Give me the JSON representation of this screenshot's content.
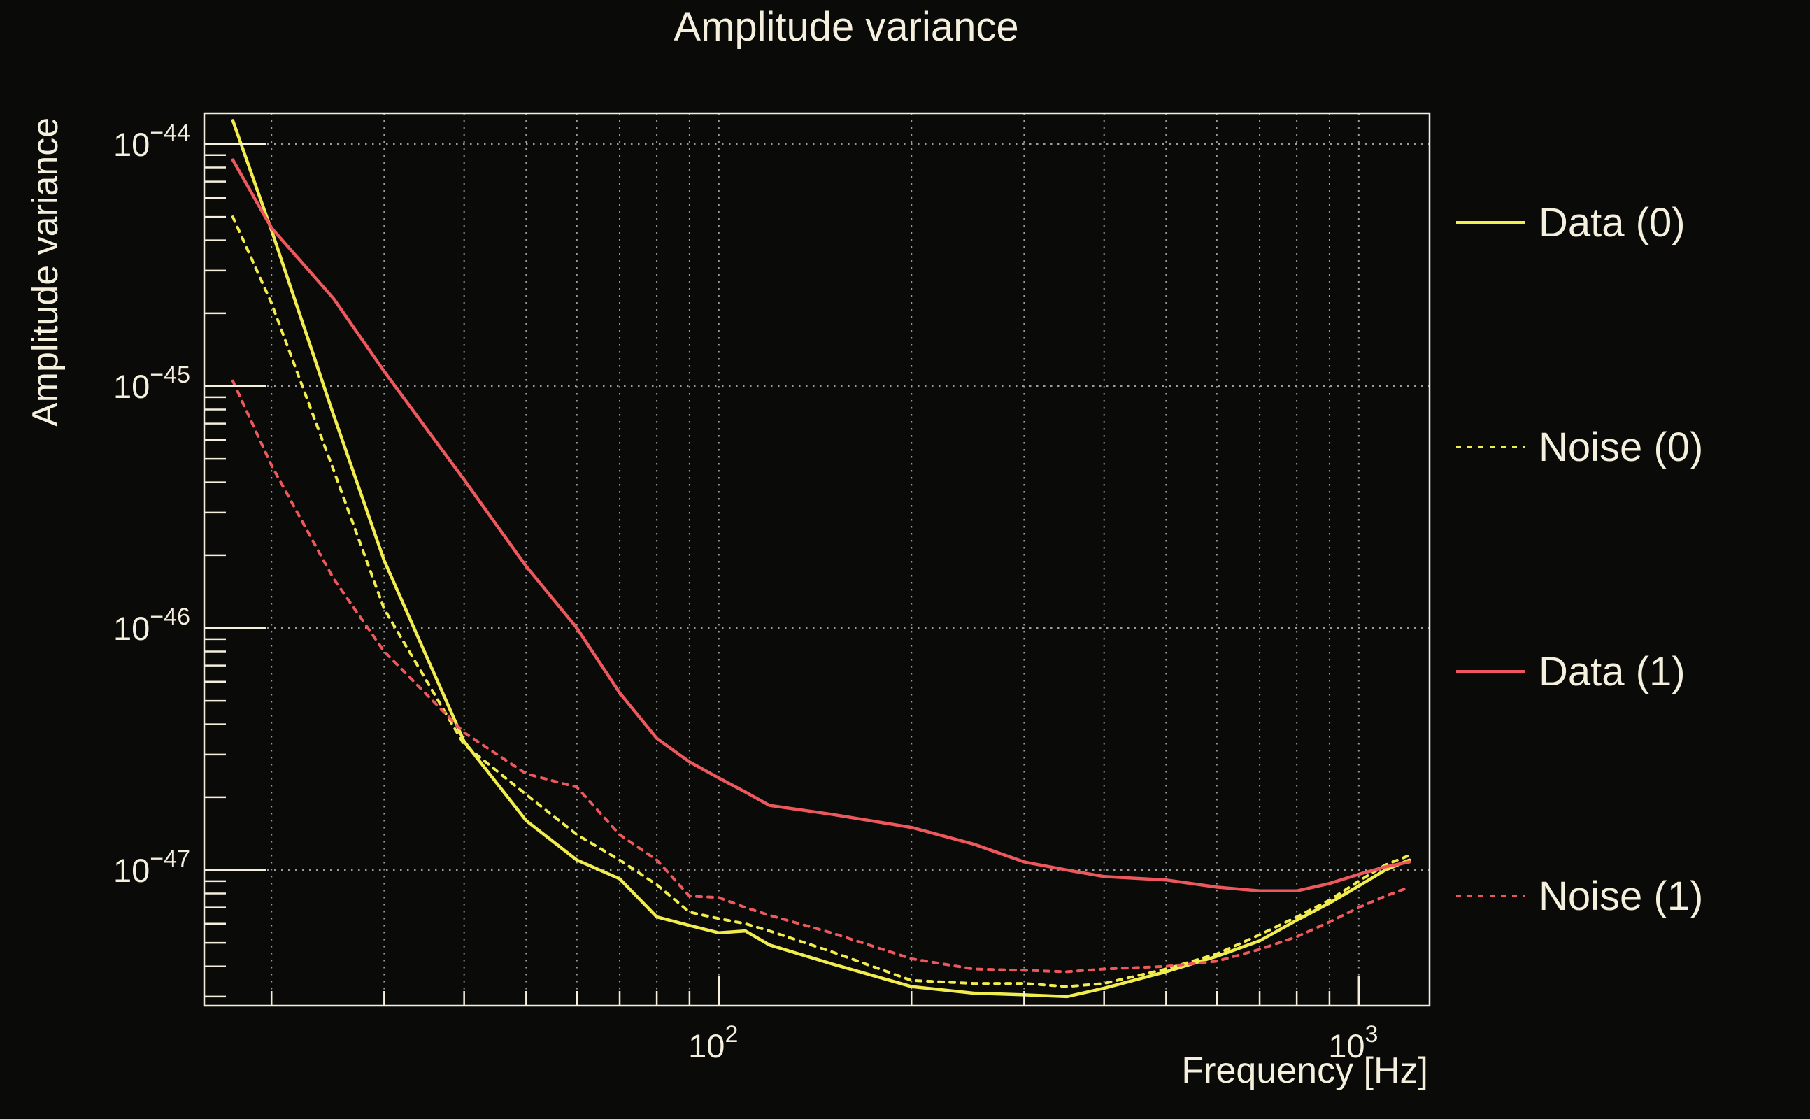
{
  "chart_data": {
    "type": "line",
    "title": "Amplitude variance",
    "xlabel": "Frequency [Hz]",
    "ylabel": "Amplitude variance",
    "xscale": "log",
    "yscale": "log",
    "xlim": [
      15.7,
      1290
    ],
    "ylim": [
      2.75e-48,
      1.34e-44
    ],
    "grid": "dotted gray lines at every log step on x (20-1000), decades only on y",
    "legend_position": "right-outside",
    "x_ticks": [
      {
        "base": "10",
        "exp": "2",
        "value": 100
      },
      {
        "base": "10",
        "exp": "3",
        "value": 1000
      }
    ],
    "y_ticks": [
      {
        "base": "10",
        "exp": "−44",
        "value": 1e-44
      },
      {
        "base": "10",
        "exp": "−45",
        "value": 1e-45
      },
      {
        "base": "10",
        "exp": "−46",
        "value": 1e-46
      },
      {
        "base": "10",
        "exp": "−47",
        "value": 1e-47
      }
    ],
    "x": [
      17.4,
      20,
      25,
      30,
      40,
      50,
      60,
      70,
      80,
      90,
      100,
      110,
      120,
      150,
      200,
      250,
      300,
      350,
      400,
      500,
      600,
      700,
      800,
      900,
      1000,
      1100,
      1200
    ],
    "series": [
      {
        "name": "Data (0)",
        "color": "#f1ed4f",
        "style": "solid",
        "values": [
          1.25e-44,
          4.4e-45,
          7.6e-46,
          1.9e-46,
          3.4e-47,
          1.6e-47,
          1.1e-47,
          9.2e-48,
          6.4e-48,
          5.9e-48,
          5.5e-48,
          5.6e-48,
          4.9e-48,
          4.1e-48,
          3.3e-48,
          3.1e-48,
          3.05e-48,
          3e-48,
          3.25e-48,
          3.8e-48,
          4.4e-48,
          5.1e-48,
          6.2e-48,
          7.3e-48,
          8.6e-48,
          1e-47,
          1.1e-47
        ]
      },
      {
        "name": "Noise (0)",
        "color": "#f1ed4f",
        "style": "dotted",
        "values": [
          5e-45,
          2.2e-45,
          4.5e-46,
          1.2e-46,
          3.3e-47,
          2.05e-47,
          1.4e-47,
          1.1e-47,
          8.7e-48,
          6.7e-48,
          6.3e-48,
          6e-48,
          5.6e-48,
          4.6e-48,
          3.5e-48,
          3.4e-48,
          3.4e-48,
          3.3e-48,
          3.4e-48,
          3.9e-48,
          4.5e-48,
          5.4e-48,
          6.4e-48,
          7.5e-48,
          9e-48,
          1.05e-47,
          1.15e-47
        ]
      },
      {
        "name": "Data (1)",
        "color": "#ed585c",
        "style": "solid",
        "values": [
          8.6e-45,
          4.5e-45,
          2.3e-45,
          1.15e-45,
          4.1e-46,
          1.8e-46,
          1e-46,
          5.4e-47,
          3.5e-47,
          2.8e-47,
          2.4e-47,
          2.1e-47,
          1.85e-47,
          1.7e-47,
          1.5e-47,
          1.28e-47,
          1.08e-47,
          1e-47,
          9.4e-48,
          9.1e-48,
          8.5e-48,
          8.2e-48,
          8.2e-48,
          8.8e-48,
          9.6e-48,
          1.03e-47,
          1.08e-47
        ]
      },
      {
        "name": "Noise (1)",
        "color": "#ed585c",
        "style": "dotted",
        "values": [
          1.05e-45,
          4.7e-46,
          1.6e-46,
          8e-47,
          3.7e-47,
          2.5e-47,
          2.2e-47,
          1.4e-47,
          1.1e-47,
          7.8e-48,
          7.7e-48,
          7e-48,
          6.5e-48,
          5.5e-48,
          4.3e-48,
          3.9e-48,
          3.85e-48,
          3.8e-48,
          3.9e-48,
          4e-48,
          4.2e-48,
          4.7e-48,
          5.3e-48,
          6.1e-48,
          7e-48,
          7.8e-48,
          8.5e-48
        ]
      }
    ]
  },
  "colors": {
    "background": "#0a0a08",
    "foreground": "#f5efdd",
    "grid": "#9c9c9c",
    "series_yellow": "#f1ed4f",
    "series_red": "#ed585c"
  }
}
